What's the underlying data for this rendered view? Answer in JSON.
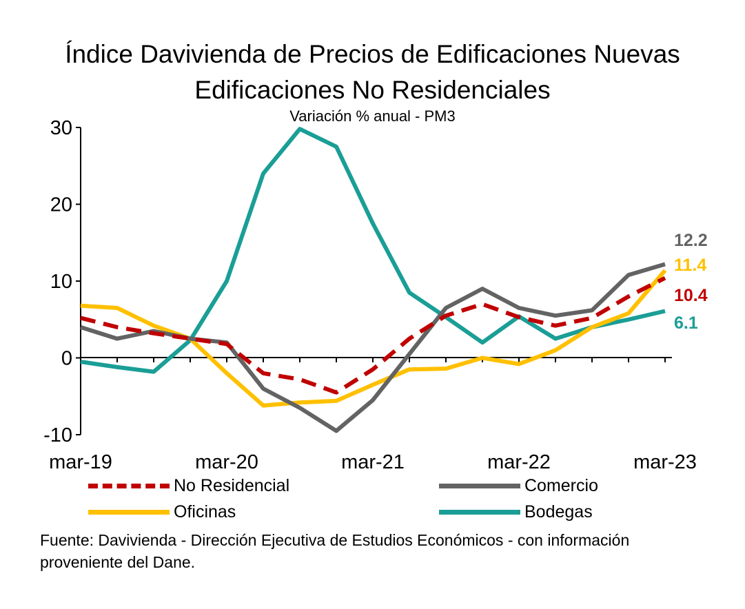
{
  "chart_data": {
    "type": "line",
    "title": "Índice Davivienda de Precios de Edificaciones Nuevas",
    "subtitle": "Edificaciones No Residenciales",
    "subtitle2": "Variación % anual - PM3",
    "x": [
      "mar-19",
      "jun-19",
      "sep-19",
      "dic-19",
      "mar-20",
      "jun-20",
      "sep-20",
      "dic-20",
      "mar-21",
      "jun-21",
      "sep-21",
      "dic-21",
      "mar-22",
      "jun-22",
      "sep-22",
      "dic-22",
      "mar-23"
    ],
    "x_tick_labels": [
      "mar-19",
      "mar-20",
      "mar-21",
      "mar-22",
      "mar-23"
    ],
    "y_ticks": [
      "-10",
      "0",
      "10",
      "20",
      "30"
    ],
    "ylim": [
      -10,
      30
    ],
    "series": [
      {
        "name": "No Residencial",
        "color": "#c00000",
        "dash": true,
        "values": [
          5.2,
          4.0,
          3.2,
          2.5,
          1.8,
          -2.0,
          -2.8,
          -4.5,
          -1.5,
          2.5,
          5.5,
          7.0,
          5.3,
          4.2,
          5.2,
          8.0,
          10.4
        ],
        "end_label": "10.4"
      },
      {
        "name": "Comercio",
        "color": "#636363",
        "dash": false,
        "values": [
          4.0,
          2.5,
          3.5,
          2.5,
          2.0,
          -4.0,
          -6.5,
          -9.5,
          -5.5,
          0.5,
          6.5,
          9.0,
          6.5,
          5.5,
          6.2,
          10.8,
          12.2
        ],
        "end_label": "12.2"
      },
      {
        "name": "Oficinas",
        "color": "#ffc000",
        "dash": false,
        "values": [
          6.8,
          6.5,
          4.2,
          2.5,
          -2.0,
          -6.2,
          -5.8,
          -5.6,
          -3.5,
          -1.5,
          -1.4,
          0.0,
          -0.8,
          1.0,
          4.0,
          5.8,
          11.4
        ],
        "end_label": "11.4"
      },
      {
        "name": "Bodegas",
        "color": "#1a9e96",
        "dash": false,
        "values": [
          -0.5,
          -1.2,
          -1.8,
          2.3,
          10.0,
          24.0,
          29.8,
          27.5,
          17.5,
          8.5,
          5.3,
          2.0,
          5.4,
          2.5,
          4.0,
          5.0,
          6.1
        ],
        "end_label": "6.1"
      }
    ],
    "legend": "bottom",
    "grid": false
  },
  "source": "Fuente: Davivienda - Dirección Ejecutiva de Estudios Económicos - con información proveniente del Dane."
}
